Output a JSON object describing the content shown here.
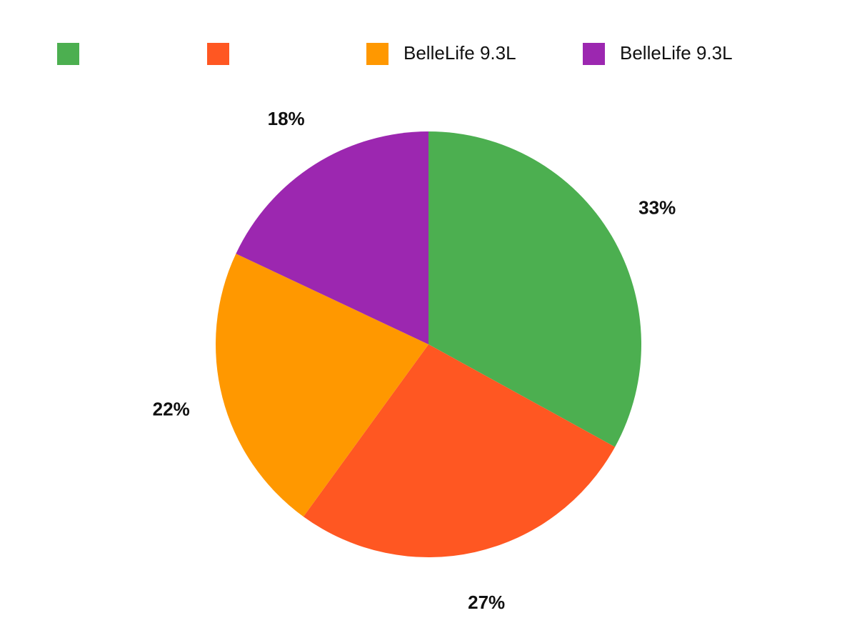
{
  "chart_data": {
    "type": "pie",
    "categories": [
      null,
      null,
      "BelleLife 9.3L",
      "BelleLife 9.3L"
    ],
    "values": [
      33,
      27,
      22,
      18
    ],
    "value_labels": [
      "33%",
      "27%",
      "22%",
      "18%"
    ],
    "colors": [
      "#4caf50",
      "#ff5722",
      "#ff9800",
      "#9c27b0"
    ]
  }
}
